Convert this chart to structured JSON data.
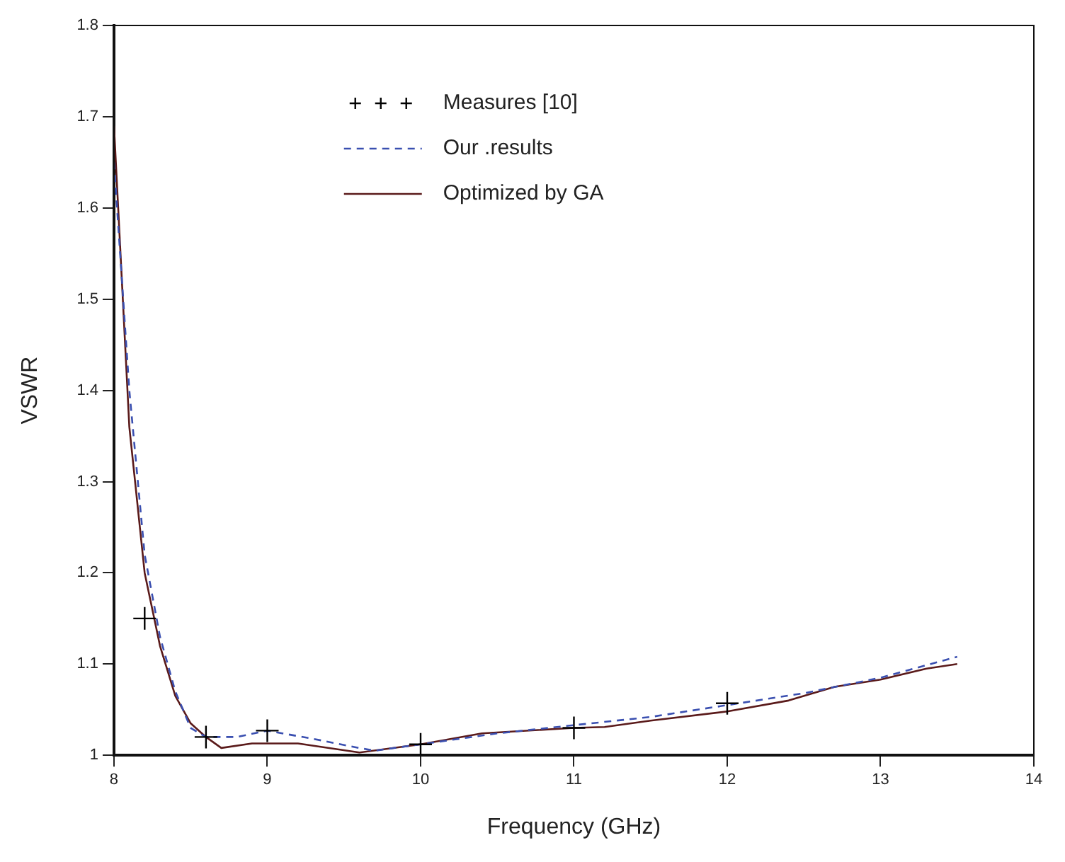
{
  "chart_data": {
    "type": "line",
    "xlabel": "Frequency (GHz)",
    "ylabel": "VSWR",
    "xlim": [
      8,
      14
    ],
    "xticks": [
      8,
      9,
      10,
      11,
      12,
      13,
      14
    ],
    "ylim": [
      1,
      1.8
    ],
    "yticks": [
      1,
      1.1,
      1.2,
      1.3,
      1.4,
      1.5,
      1.6,
      1.7,
      1.8
    ],
    "grid": false,
    "legend": "top",
    "series": [
      {
        "name": "Measures [10]",
        "type": "scatter",
        "marker": "cross",
        "color": "#000000",
        "x": [
          8.2,
          8.6,
          9,
          10,
          11,
          12
        ],
        "values": [
          1.15,
          1.02,
          1.027,
          1.012,
          1.03,
          1.057
        ]
      },
      {
        "name": "Our .results",
        "line_style": "dashed",
        "marker": "none",
        "color": "#3a4fb0",
        "x": [
          8,
          8.1,
          8.2,
          8.3,
          8.4,
          8.5,
          8.6,
          8.8,
          9,
          9.3,
          9.6,
          9.7,
          10,
          10.5,
          11,
          11.5,
          12,
          12.5,
          13,
          13.5
        ],
        "values": [
          1.65,
          1.4,
          1.22,
          1.13,
          1.07,
          1.03,
          1.02,
          1.02,
          1.027,
          1.018,
          1.008,
          1.005,
          1.012,
          1.024,
          1.033,
          1.042,
          1.055,
          1.068,
          1.085,
          1.108
        ]
      },
      {
        "name": "Optimized by GA",
        "line_style": "solid",
        "marker": "none",
        "color": "#5a1a1a",
        "x": [
          8,
          8.1,
          8.2,
          8.3,
          8.4,
          8.5,
          8.6,
          8.7,
          8.9,
          9.2,
          9.6,
          10,
          10.4,
          11,
          11.2,
          11.5,
          12,
          12.4,
          12.7,
          13,
          13.3,
          13.5
        ],
        "values": [
          1.69,
          1.36,
          1.2,
          1.12,
          1.065,
          1.035,
          1.02,
          1.008,
          1.013,
          1.013,
          1.003,
          1.012,
          1.024,
          1.03,
          1.031,
          1.038,
          1.048,
          1.06,
          1.075,
          1.083,
          1.095,
          1.1
        ]
      }
    ]
  }
}
